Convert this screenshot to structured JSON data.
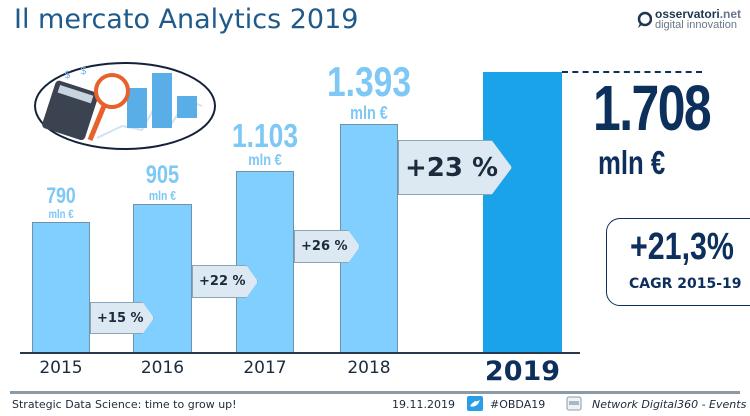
{
  "title": "Il mercato Analytics 2019",
  "logo": {
    "brand": "osservatori",
    "domain": ".net",
    "tagline": "digital innovation"
  },
  "chart_data": {
    "type": "bar",
    "categories": [
      "2015",
      "2016",
      "2017",
      "2018",
      "2019"
    ],
    "values": [
      790,
      905,
      1103,
      1393,
      1708
    ],
    "value_labels": [
      "790",
      "905",
      "1.103",
      "1.393",
      "1.708"
    ],
    "unit": "mln €",
    "highlight": "2019",
    "growth": [
      "+15 %",
      "+22 %",
      "+26 %",
      "+23 %"
    ],
    "cagr": {
      "value": "+21,3%",
      "label": "CAGR 2015-19"
    },
    "colors": {
      "bar": "#80cfff",
      "highlight": "#1ba3ea",
      "text": "#0d2f5c"
    }
  },
  "footer": {
    "left": "Strategic Data Science: time to grow up!",
    "date": "19.11.2019",
    "hashtag": "#OBDA19",
    "network": "Network Digital360 - Events"
  }
}
